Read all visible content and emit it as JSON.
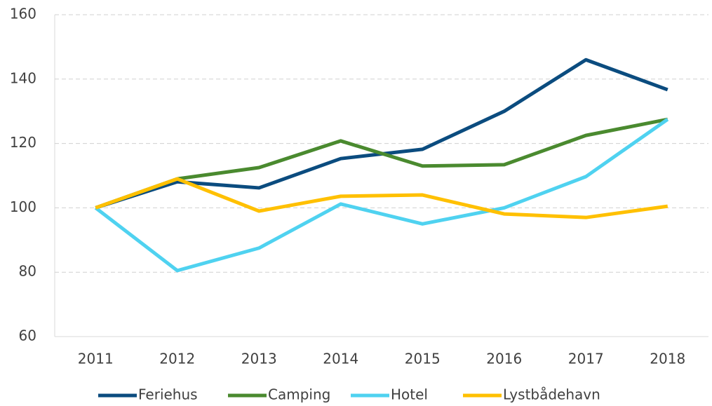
{
  "chart_data": {
    "type": "line",
    "categories": [
      "2011",
      "2012",
      "2013",
      "2014",
      "2015",
      "2016",
      "2017",
      "2018"
    ],
    "series": [
      {
        "name": "Feriehus",
        "color": "#0b4c7f",
        "values": [
          100,
          108.1,
          106.2,
          115.3,
          118.2,
          130,
          146,
          136.7
        ]
      },
      {
        "name": "Camping",
        "color": "#4a8a2f",
        "values": [
          100,
          109,
          112.5,
          120.8,
          113,
          113.4,
          122.5,
          127.5
        ]
      },
      {
        "name": "Hotel",
        "color": "#4fd2f0",
        "values": [
          100,
          80.5,
          87.5,
          101.2,
          95,
          100,
          109.7,
          127.5
        ]
      },
      {
        "name": "Lystbådehavn",
        "color": "#ffc000",
        "values": [
          100,
          109,
          99,
          103.6,
          104,
          98.1,
          97,
          100.5
        ]
      }
    ],
    "ylim": [
      60,
      160
    ],
    "yticks": [
      60,
      80,
      100,
      120,
      140,
      160
    ],
    "grid": true,
    "legend": "bottom"
  }
}
